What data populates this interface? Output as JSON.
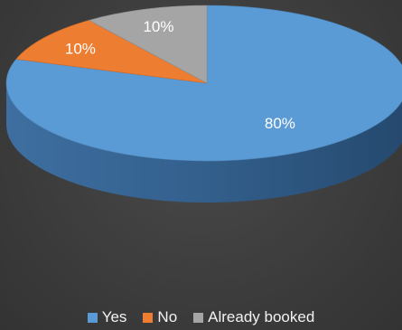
{
  "chart_data": {
    "type": "pie",
    "style": "3d",
    "title": "",
    "slices": [
      {
        "label": "Yes",
        "value": 80,
        "display": "80%",
        "color": "#5b9bd5"
      },
      {
        "label": "No",
        "value": 10,
        "display": "10%",
        "color": "#ed7d31"
      },
      {
        "label": "Already booked",
        "value": 10,
        "display": "10%",
        "color": "#a5a5a5"
      }
    ],
    "legend_position": "bottom",
    "data_label_color": "#ffffff",
    "background": "#3f3f3f"
  }
}
